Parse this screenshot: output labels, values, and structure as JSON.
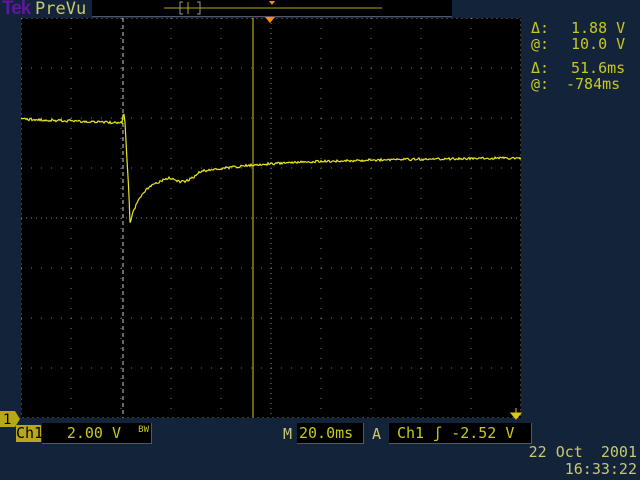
{
  "header": {
    "brand": "Tek",
    "mode": "PreVu"
  },
  "cursors": {
    "volts_delta_label": "Δ:",
    "volts_delta": "1.88 V",
    "volts_at_label": "@:",
    "volts_at": "10.0 V",
    "time_delta_label": "Δ:",
    "time_delta": "51.6ms",
    "time_at_label": "@:",
    "time_at": "-784ms"
  },
  "footer": {
    "channel": "Ch1",
    "volts_div": "2.00 V",
    "bw": "BW",
    "main_label": "M",
    "time_div": "20.0ms",
    "trigger_label": "A",
    "trigger_source": "Ch1",
    "trigger_slope": "rising-edge-icon",
    "trigger_level": "-2.52 V",
    "channel_marker": "1",
    "date": "22 Oct  2001",
    "time": "16:33:22"
  },
  "colors": {
    "trace": "#e8e820",
    "trigger_marker": "#ff8c1a",
    "background": "#12233a"
  }
}
